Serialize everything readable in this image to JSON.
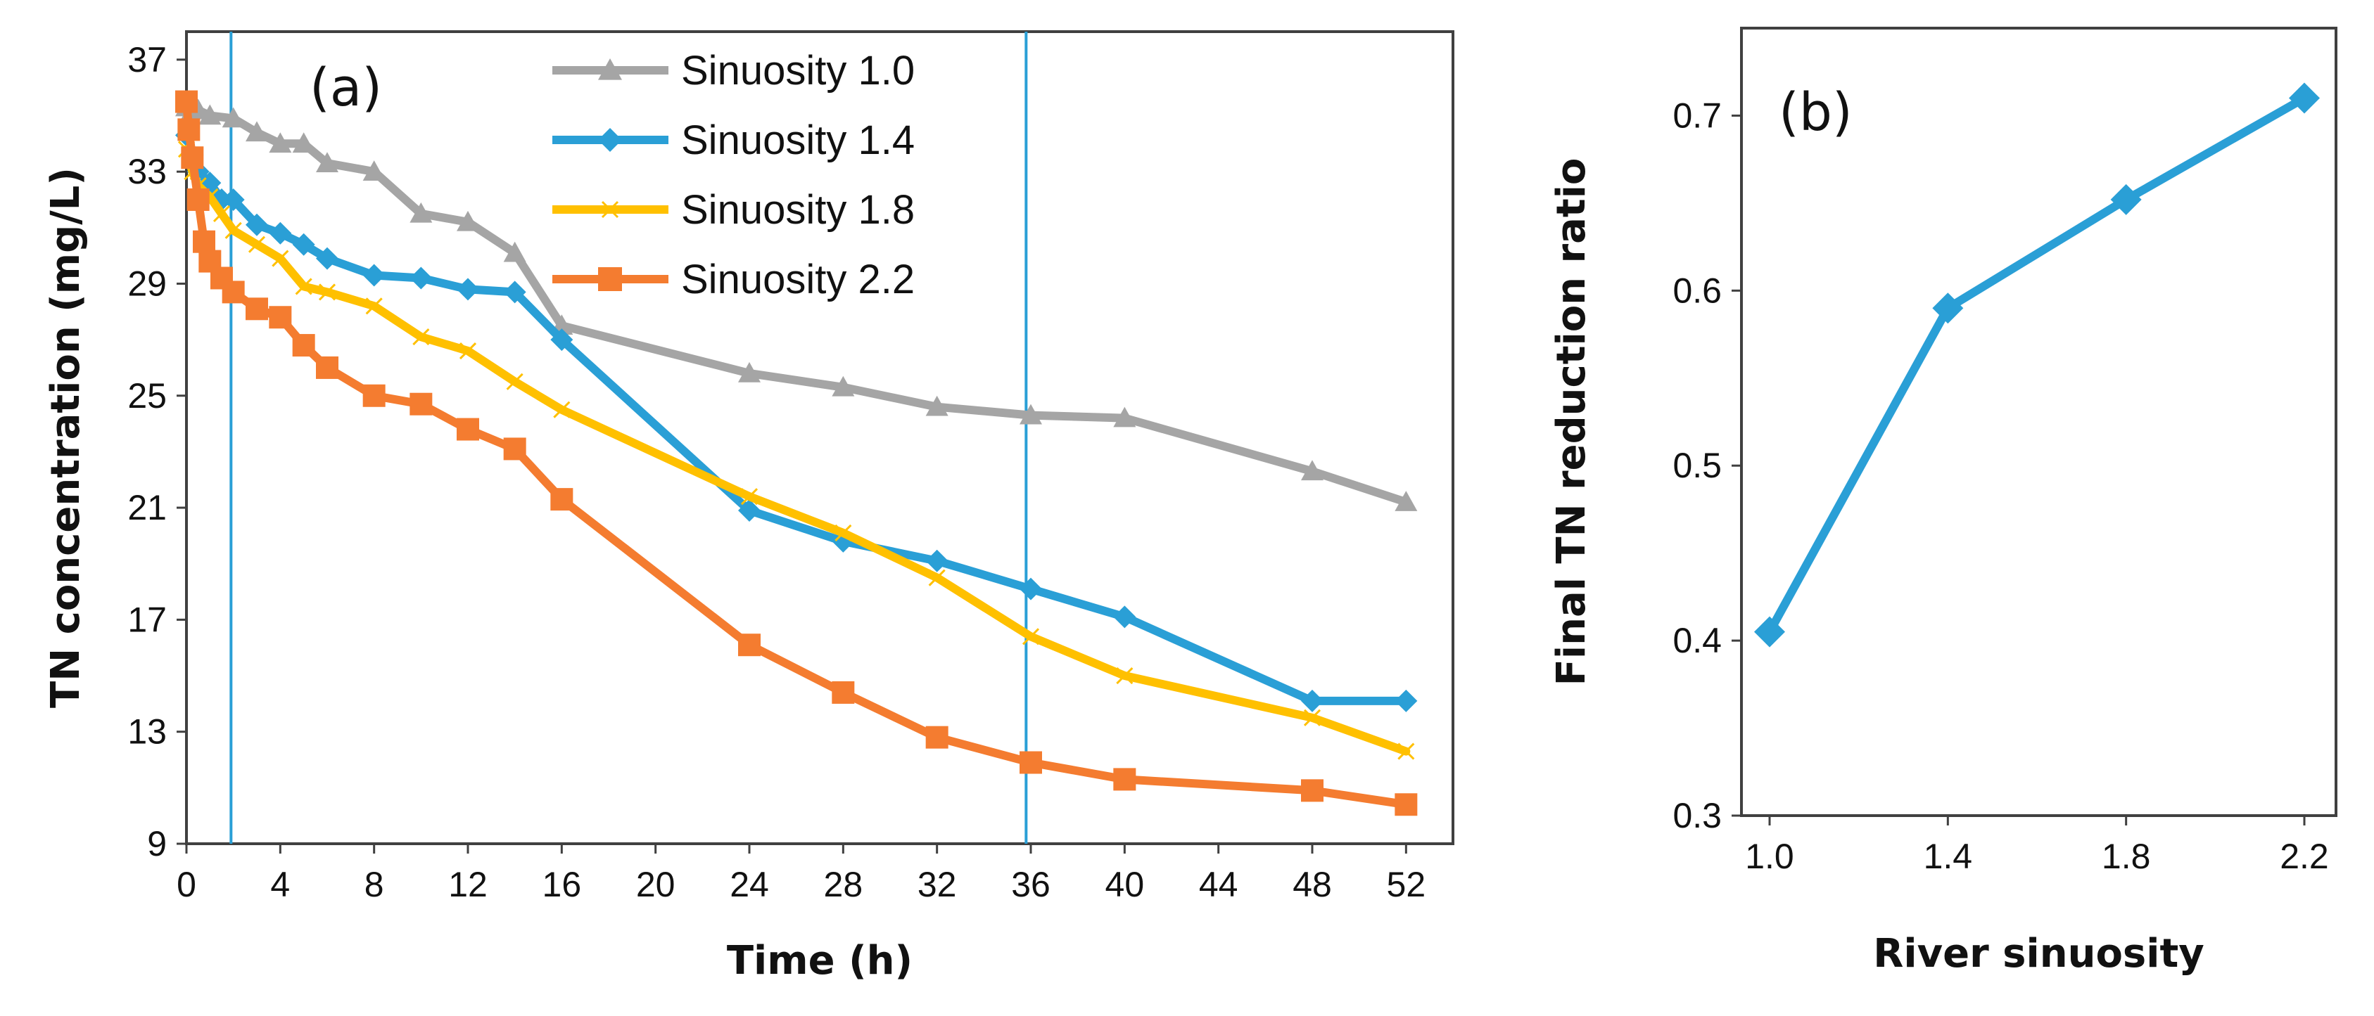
{
  "chart_data": [
    {
      "type": "line",
      "panel_label": "(a)",
      "xlabel": "Time (h)",
      "ylabel": "TN concentration (mg/L)",
      "xlim": [
        0,
        54
      ],
      "ylim": [
        9,
        38
      ],
      "x_ticks": [
        0,
        4,
        8,
        12,
        16,
        20,
        24,
        28,
        32,
        36,
        40,
        44,
        48,
        52
      ],
      "y_ticks": [
        9,
        13,
        17,
        21,
        25,
        29,
        33,
        37
      ],
      "reference_lines_x": [
        1.9,
        35.8
      ],
      "legend_position": "top-right",
      "grid": false,
      "series": [
        {
          "name": "Sinuosity 1.0",
          "color": "#a5a5a5",
          "marker": "triangle",
          "x": [
            0,
            0.25,
            0.5,
            1,
            2,
            3,
            4,
            5,
            6,
            8,
            10,
            12,
            14,
            16,
            24,
            28,
            32,
            36,
            40,
            48,
            52
          ],
          "y": [
            35.3,
            35.2,
            35.2,
            35.0,
            34.9,
            34.4,
            34.0,
            34.0,
            33.3,
            33.0,
            31.5,
            31.2,
            30.1,
            27.5,
            25.8,
            25.3,
            24.6,
            24.3,
            24.2,
            22.3,
            21.2
          ]
        },
        {
          "name": "Sinuosity 1.4",
          "color": "#2a9fd6",
          "marker": "diamond",
          "x": [
            0,
            0.25,
            0.5,
            1,
            1.5,
            2,
            3,
            4,
            5,
            6,
            8,
            10,
            12,
            14,
            16,
            24,
            28,
            32,
            36,
            40,
            48,
            52
          ],
          "y": [
            34.3,
            33.6,
            33.0,
            32.6,
            32.0,
            32.0,
            31.1,
            30.8,
            30.4,
            29.9,
            29.3,
            29.2,
            28.8,
            28.7,
            27.0,
            20.9,
            19.8,
            19.1,
            18.1,
            17.1,
            14.1,
            14.1
          ]
        },
        {
          "name": "Sinuosity 1.8",
          "color": "#ffc000",
          "marker": "x",
          "x": [
            0,
            0.25,
            0.5,
            1,
            1.5,
            2,
            3,
            4,
            5,
            6,
            8,
            10,
            12,
            14,
            16,
            24,
            28,
            32,
            36,
            40,
            48,
            52
          ],
          "y": [
            33.8,
            33.0,
            32.5,
            32.1,
            31.5,
            30.9,
            30.4,
            29.9,
            28.9,
            28.7,
            28.2,
            27.1,
            26.6,
            25.5,
            24.5,
            21.4,
            20.1,
            18.5,
            16.4,
            15.0,
            13.5,
            12.3
          ]
        },
        {
          "name": "Sinuosity 2.2",
          "color": "#f47c30",
          "marker": "square",
          "x": [
            0,
            0.1,
            0.25,
            0.5,
            0.75,
            1,
            1.5,
            2,
            3,
            4,
            5,
            6,
            8,
            10,
            12,
            14,
            16,
            24,
            28,
            32,
            36,
            40,
            48,
            52
          ],
          "y": [
            35.5,
            34.5,
            33.5,
            32.0,
            30.5,
            29.8,
            29.2,
            28.7,
            28.1,
            27.8,
            26.8,
            26.0,
            25.0,
            24.7,
            23.8,
            23.1,
            21.3,
            16.1,
            14.4,
            12.8,
            11.9,
            11.3,
            10.9,
            10.4
          ]
        }
      ]
    },
    {
      "type": "line",
      "panel_label": "(b)",
      "xlabel": "River sinuosity",
      "ylabel": "Final TN reduction ratio",
      "categories": [
        "1.0",
        "1.4",
        "1.8",
        "2.2"
      ],
      "ylim": [
        0.3,
        0.75
      ],
      "y_ticks": [
        "0.3",
        "0.4",
        "0.5",
        "0.6",
        "0.7"
      ],
      "grid": false,
      "series": [
        {
          "name": "",
          "color": "#2a9fd6",
          "marker": "diamond",
          "values": [
            0.405,
            0.59,
            0.652,
            0.71
          ]
        }
      ]
    }
  ]
}
